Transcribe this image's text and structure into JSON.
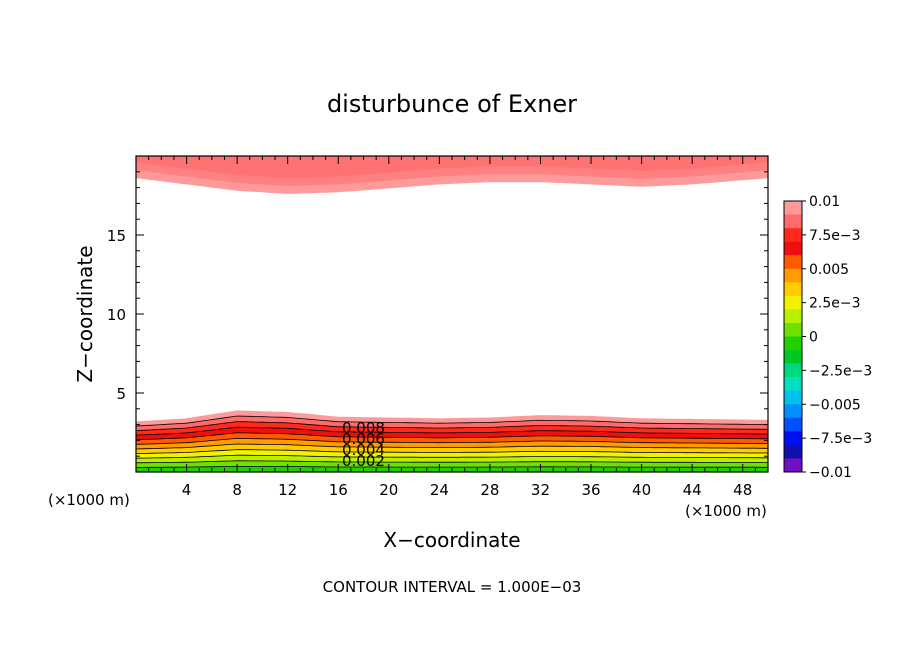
{
  "chart_data": {
    "type": "contour",
    "title": "disturbunce of Exner",
    "xlabel": "X−coordinate",
    "ylabel": "Z−coordinate",
    "x_unit_label": "(×1000 m)",
    "y_unit_label": "(×1000 m)",
    "footer": "CONTOUR INTERVAL = 1.000E−03",
    "xlim": [
      0,
      50
    ],
    "ylim": [
      0,
      20
    ],
    "x_ticks": [
      4,
      8,
      12,
      16,
      20,
      24,
      28,
      32,
      36,
      40,
      44,
      48
    ],
    "y_ticks": [
      5,
      10,
      15
    ],
    "contour_interval": 0.001,
    "contour_labels": [
      "0.008",
      "0.006",
      "0.004",
      "0.002"
    ],
    "colorbar": {
      "min": -0.01,
      "max": 0.01,
      "tick_labels": [
        "0.01",
        "7.5e−3",
        "0.005",
        "2.5e−3",
        "0",
        "−2.5e−3",
        "−0.005",
        "−7.5e−3",
        "−0.01"
      ],
      "colors": [
        "#ff9a9a",
        "#ff6a6a",
        "#ff2a1a",
        "#ee1010",
        "#ff5a00",
        "#ff9a00",
        "#ffcc00",
        "#f2f200",
        "#b8f000",
        "#70e000",
        "#22d000",
        "#00c820",
        "#00d880",
        "#00e0c0",
        "#00c0ee",
        "#0090ff",
        "#0050ff",
        "#0010f0",
        "#1010b0",
        "#7010c0"
      ]
    },
    "bottom_layer": {
      "description_values": "positive disturbance band from surface to about z=3.5 km",
      "top_z": [
        3.2,
        3.4,
        3.9,
        3.8,
        3.5,
        3.45,
        3.4,
        3.45,
        3.6,
        3.55,
        3.4,
        3.3
      ],
      "x": [
        0,
        4,
        8,
        12,
        16,
        20,
        24,
        28,
        32,
        36,
        40,
        50
      ]
    },
    "top_layer": {
      "x": [
        0,
        4,
        8,
        12,
        16,
        20,
        24,
        28,
        32,
        36,
        40,
        44,
        50
      ],
      "bottom_z": [
        18.6,
        18.2,
        17.8,
        17.6,
        17.7,
        17.95,
        18.2,
        18.35,
        18.35,
        18.2,
        18.05,
        18.2,
        18.6
      ]
    }
  }
}
